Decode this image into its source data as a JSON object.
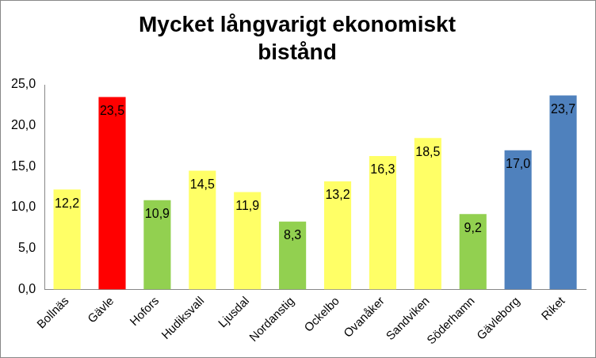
{
  "chart_data": {
    "type": "bar",
    "title": [
      "Mycket långvarigt ekonomiskt",
      "bistånd"
    ],
    "categories": [
      "Bollnäs",
      "Gävle",
      "Hofors",
      "Hudiksvall",
      "Ljusdal",
      "Nordanstig",
      "Ockelbo",
      "Ovanåker",
      "Sandviken",
      "Söderhamn",
      "Gävleborg",
      "Riket"
    ],
    "values": [
      12.2,
      23.5,
      10.9,
      14.5,
      11.9,
      8.3,
      13.2,
      16.3,
      18.5,
      9.2,
      17.0,
      23.7
    ],
    "value_labels": [
      "12,2",
      "23,5",
      "10,9",
      "14,5",
      "11,9",
      "8,3",
      "13,2",
      "16,3",
      "18,5",
      "9,2",
      "17,0",
      "23,7"
    ],
    "colors": [
      "#ffff66",
      "#ff0000",
      "#92d050",
      "#ffff66",
      "#ffff66",
      "#92d050",
      "#ffff66",
      "#ffff66",
      "#ffff66",
      "#92d050",
      "#4f81bd",
      "#4f81bd"
    ],
    "ylim": [
      0,
      25
    ],
    "yticks": [
      {
        "value": 0,
        "label": "0,0"
      },
      {
        "value": 5,
        "label": "5,0"
      },
      {
        "value": 10,
        "label": "10,0"
      },
      {
        "value": 15,
        "label": "15,0"
      },
      {
        "value": 20,
        "label": "20,0"
      },
      {
        "value": 25,
        "label": "25,0"
      }
    ],
    "grid": false,
    "data_labels": true
  }
}
